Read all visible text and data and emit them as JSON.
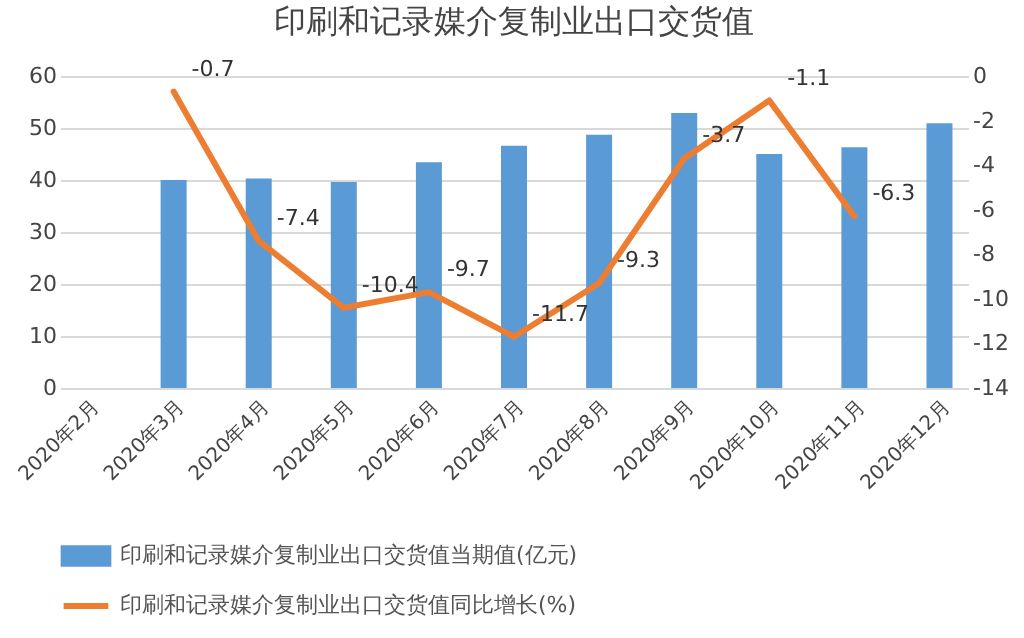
{
  "chart_data": {
    "type": "bar",
    "title": "印刷和记录媒介复制业出口交货值",
    "categories": [
      "2020年2月",
      "2020年3月",
      "2020年4月",
      "2020年5月",
      "2020年6月",
      "2020年7月",
      "2020年8月",
      "2020年9月",
      "2020年10月",
      "2020年11月",
      "2020年12月"
    ],
    "series": [
      {
        "name": "印刷和记录媒介复制业出口交货值当期值(亿元)",
        "color": "#5b9bd5",
        "values": [
          null,
          40,
          40.3,
          39.6,
          43.4,
          46.6,
          48.7,
          52.9,
          45.0,
          46.3,
          50.9
        ]
      },
      {
        "name": "印刷和记录媒介复制业出口交货值同比增长(%)",
        "type": "line",
        "axis": "y2",
        "color": "#ed7d31",
        "values": [
          null,
          -0.7,
          -7.4,
          -10.4,
          -9.7,
          -11.7,
          -9.3,
          -3.7,
          -1.1,
          -6.3,
          null
        ],
        "value_labels": [
          null,
          "-0.7",
          "-7.4",
          "-10.4",
          "-9.7",
          "-11.7",
          "-9.3",
          "-3.7",
          "-1.1",
          "-6.3",
          null
        ]
      }
    ],
    "ylim": [
      0,
      60
    ],
    "yticks": [
      0,
      10,
      20,
      30,
      40,
      50,
      60
    ],
    "y2lim": [
      -14,
      0
    ],
    "y2ticks": [
      0,
      -2,
      -4,
      -6,
      -8,
      -10,
      -12,
      -14
    ],
    "grid": "y",
    "legend": "bottom"
  }
}
